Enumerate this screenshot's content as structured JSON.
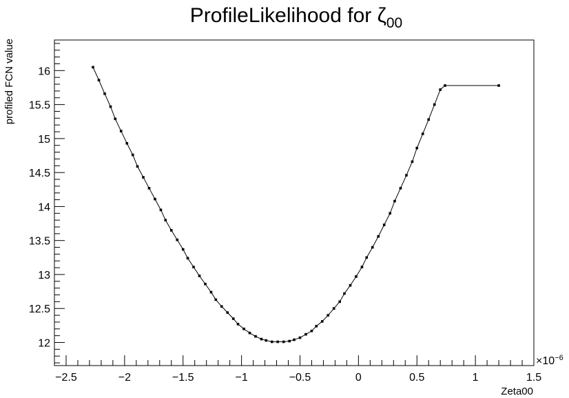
{
  "chart_data": {
    "type": "line",
    "title": "ProfileLikelihood for ",
    "title_symbol": "ζ",
    "title_subscript": "00",
    "xlabel": "Zeta00",
    "ylabel": "profiled FCN value",
    "x_multiplier": "×10",
    "x_multiplier_exponent": "−6",
    "xlim": [
      -2.6,
      1.5
    ],
    "ylim": [
      11.66,
      16.45
    ],
    "xticks": [
      -2.5,
      -2,
      -1.5,
      -1,
      -0.5,
      0,
      0.5,
      1,
      1.5
    ],
    "xtick_labels": [
      "−2.5",
      "−2",
      "−1.5",
      "−1",
      "−0.5",
      "0",
      "0.5",
      "1",
      "1.5"
    ],
    "yticks": [
      12,
      12.5,
      13,
      13.5,
      14,
      14.5,
      15,
      15.5,
      16
    ],
    "ytick_labels": [
      "12",
      "12.5",
      "13",
      "13.5",
      "14",
      "14.5",
      "15",
      "15.5",
      "16"
    ],
    "grid": false,
    "legend": "none",
    "line_color": "#000000",
    "marker": "square",
    "series": [
      {
        "x": [
          -2.27,
          -2.22,
          -2.17,
          -2.12,
          -2.08,
          -2.03,
          -1.98,
          -1.93,
          -1.89,
          -1.84,
          -1.79,
          -1.74,
          -1.69,
          -1.65,
          -1.6,
          -1.55,
          -1.5,
          -1.46,
          -1.41,
          -1.36,
          -1.31,
          -1.26,
          -1.22,
          -1.17,
          -1.12,
          -1.07,
          -1.03,
          -0.98,
          -0.93,
          -0.88,
          -0.83,
          -0.79,
          -0.74,
          -0.69,
          -0.64,
          -0.59,
          -0.55,
          -0.5,
          -0.45,
          -0.4,
          -0.36,
          -0.31,
          -0.26,
          -0.21,
          -0.16,
          -0.12,
          -0.07,
          -0.02,
          0.03,
          0.07,
          0.12,
          0.17,
          0.22,
          0.27,
          0.31,
          0.36,
          0.41,
          0.46,
          0.5,
          0.55,
          0.6,
          0.65,
          0.7,
          0.74,
          0.79,
          0.84,
          0.89,
          0.93,
          0.98,
          1.03,
          1.08,
          1.13,
          1.17,
          1.2
        ],
        "y": [
          16.05,
          15.86,
          15.66,
          15.47,
          15.29,
          15.11,
          14.93,
          14.76,
          14.59,
          14.43,
          14.27,
          14.11,
          13.95,
          13.8,
          13.65,
          13.51,
          13.37,
          13.24,
          13.11,
          12.98,
          12.86,
          12.74,
          12.63,
          12.53,
          12.44,
          12.35,
          12.27,
          12.2,
          12.14,
          12.09,
          12.05,
          12.03,
          12.01,
          12.01,
          12.01,
          12.02,
          12.04,
          12.07,
          12.12,
          12.17,
          12.24,
          12.31,
          12.4,
          12.5,
          12.6,
          12.72,
          12.84,
          12.97,
          13.11,
          13.25,
          13.4,
          13.56,
          13.73,
          13.9,
          14.08,
          14.27,
          14.46,
          14.66,
          14.86,
          15.07,
          15.28,
          15.5,
          15.72,
          15.78,
          15.78,
          15.78,
          15.78,
          15.78,
          15.78,
          15.78,
          15.78,
          15.78,
          15.78,
          15.78
        ]
      }
    ]
  }
}
